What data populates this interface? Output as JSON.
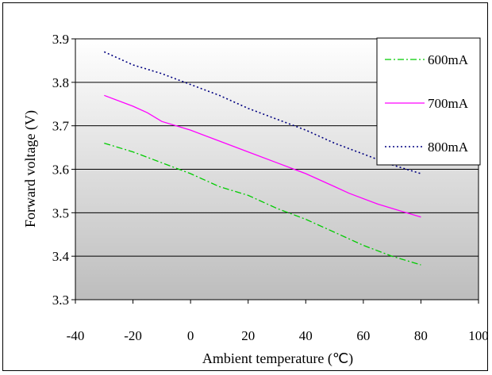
{
  "chart_data": {
    "type": "line",
    "xlabel": "Ambient temperature (℃)",
    "ylabel": "Forward voltage (V)",
    "xlim": [
      -40,
      100
    ],
    "ylim": [
      3.3,
      3.9
    ],
    "xticks": [
      "-40",
      "-20",
      "0",
      "20",
      "40",
      "60",
      "80",
      "100"
    ],
    "yticks": [
      "3.3",
      "3.4",
      "3.5",
      "3.6",
      "3.7",
      "3.8",
      "3.9"
    ],
    "grid": "horizontal",
    "legend_position": "top-right",
    "series": [
      {
        "name": "600mA",
        "color": "#00cc00",
        "style": "dash-dot",
        "x": [
          -30,
          -20,
          -10,
          0,
          10,
          20,
          30,
          40,
          50,
          60,
          70,
          80
        ],
        "y": [
          3.66,
          3.64,
          3.615,
          3.59,
          3.56,
          3.54,
          3.51,
          3.485,
          3.455,
          3.425,
          3.4,
          3.38
        ]
      },
      {
        "name": "700mA",
        "color": "#ff00ff",
        "style": "solid",
        "x": [
          -30,
          -20,
          -15,
          -10,
          0,
          10,
          20,
          30,
          40,
          50,
          55,
          65,
          70,
          80
        ],
        "y": [
          3.77,
          3.745,
          3.73,
          3.71,
          3.69,
          3.665,
          3.64,
          3.615,
          3.59,
          3.56,
          3.545,
          3.52,
          3.51,
          3.49
        ]
      },
      {
        "name": "800mA",
        "color": "#000080",
        "style": "dotted",
        "x": [
          -30,
          -20,
          -10,
          0,
          10,
          20,
          30,
          40,
          50,
          60,
          70,
          80
        ],
        "y": [
          3.87,
          3.84,
          3.82,
          3.795,
          3.77,
          3.74,
          3.715,
          3.69,
          3.66,
          3.635,
          3.61,
          3.59
        ]
      }
    ]
  }
}
